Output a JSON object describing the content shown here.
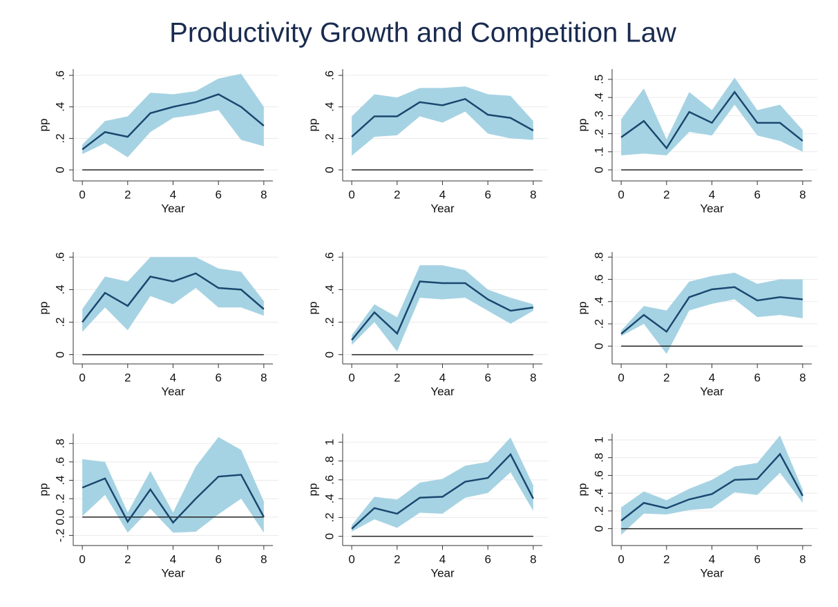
{
  "title": "Productivity Growth and Competition Law",
  "chart_data": [
    {
      "type": "line",
      "xlabel": "Year",
      "ylabel": "pp",
      "x": [
        0,
        1,
        2,
        3,
        4,
        5,
        6,
        7,
        8
      ],
      "values": [
        0.13,
        0.24,
        0.21,
        0.36,
        0.4,
        0.43,
        0.48,
        0.4,
        0.28
      ],
      "ci_low": [
        0.1,
        0.17,
        0.08,
        0.24,
        0.33,
        0.35,
        0.38,
        0.19,
        0.15
      ],
      "ci_high": [
        0.16,
        0.31,
        0.34,
        0.49,
        0.48,
        0.5,
        0.58,
        0.61,
        0.4
      ],
      "xlim": [
        -0.4,
        8.4
      ],
      "xticks": [
        0,
        2,
        4,
        6,
        8
      ],
      "ylim": [
        -0.07,
        0.64
      ],
      "yticks": [
        0,
        {
          "value": 0.2,
          "label": ".2"
        },
        {
          "value": 0.4,
          "label": ".4"
        },
        {
          "value": 0.6,
          "label": ".6"
        }
      ],
      "reference_line": 0,
      "grid": true,
      "color": "#1a476f",
      "band_color": "#a6d3e3"
    },
    {
      "type": "line",
      "xlabel": "Year",
      "ylabel": "pp",
      "x": [
        0,
        1,
        2,
        3,
        4,
        5,
        6,
        7,
        8
      ],
      "values": [
        0.21,
        0.34,
        0.34,
        0.43,
        0.41,
        0.45,
        0.35,
        0.33,
        0.25
      ],
      "ci_low": [
        0.09,
        0.21,
        0.22,
        0.34,
        0.3,
        0.37,
        0.23,
        0.2,
        0.19
      ],
      "ci_high": [
        0.34,
        0.48,
        0.46,
        0.52,
        0.52,
        0.53,
        0.48,
        0.47,
        0.31
      ],
      "xlim": [
        -0.4,
        8.4
      ],
      "xticks": [
        0,
        2,
        4,
        6,
        8
      ],
      "ylim": [
        -0.07,
        0.64
      ],
      "yticks": [
        0,
        {
          "value": 0.2,
          "label": ".2"
        },
        {
          "value": 0.4,
          "label": ".4"
        },
        {
          "value": 0.6,
          "label": ".6"
        }
      ],
      "reference_line": 0,
      "grid": true,
      "color": "#1a476f",
      "band_color": "#a6d3e3"
    },
    {
      "type": "line",
      "xlabel": "Year",
      "ylabel": "pp",
      "x": [
        0,
        1,
        2,
        3,
        4,
        5,
        6,
        7,
        8
      ],
      "values": [
        0.18,
        0.27,
        0.12,
        0.32,
        0.26,
        0.43,
        0.26,
        0.26,
        0.16
      ],
      "ci_low": [
        0.08,
        0.09,
        0.08,
        0.21,
        0.19,
        0.36,
        0.19,
        0.16,
        0.1
      ],
      "ci_high": [
        0.28,
        0.45,
        0.17,
        0.43,
        0.33,
        0.51,
        0.33,
        0.36,
        0.22
      ],
      "xlim": [
        -0.4,
        8.4
      ],
      "xticks": [
        0,
        2,
        4,
        6,
        8
      ],
      "ylim": [
        -0.061,
        0.557
      ],
      "yticks": [
        0,
        {
          "value": 0.1,
          "label": ".1"
        },
        {
          "value": 0.2,
          "label": ".2"
        },
        {
          "value": 0.3,
          "label": ".3"
        },
        {
          "value": 0.4,
          "label": ".4"
        },
        {
          "value": 0.5,
          "label": ".5"
        }
      ],
      "reference_line": 0,
      "grid": true,
      "color": "#1a476f",
      "band_color": "#a6d3e3"
    },
    {
      "type": "line",
      "xlabel": "Year",
      "ylabel": "pp",
      "x": [
        0,
        1,
        2,
        3,
        4,
        5,
        6,
        7,
        8
      ],
      "values": [
        0.2,
        0.38,
        0.3,
        0.48,
        0.45,
        0.5,
        0.41,
        0.4,
        0.28
      ],
      "ci_low": [
        0.14,
        0.29,
        0.15,
        0.36,
        0.31,
        0.41,
        0.29,
        0.29,
        0.24
      ],
      "ci_high": [
        0.28,
        0.48,
        0.45,
        0.6,
        0.6,
        0.6,
        0.53,
        0.51,
        0.33
      ],
      "xlim": [
        -0.4,
        8.4
      ],
      "xticks": [
        0,
        2,
        4,
        6,
        8
      ],
      "ylim": [
        -0.057,
        0.631
      ],
      "yticks": [
        0,
        {
          "value": 0.2,
          "label": ".2"
        },
        {
          "value": 0.4,
          "label": ".4"
        },
        {
          "value": 0.6,
          "label": ".6"
        }
      ],
      "reference_line": 0,
      "grid": true,
      "color": "#1a476f",
      "band_color": "#a6d3e3"
    },
    {
      "type": "line",
      "xlabel": "Year",
      "ylabel": "pp",
      "x": [
        0,
        1,
        2,
        3,
        4,
        5,
        6,
        7,
        8
      ],
      "values": [
        0.09,
        0.26,
        0.13,
        0.45,
        0.44,
        0.44,
        0.34,
        0.27,
        0.29
      ],
      "ci_low": [
        0.06,
        0.2,
        0.02,
        0.35,
        0.34,
        0.35,
        0.27,
        0.19,
        0.27
      ],
      "ci_high": [
        0.12,
        0.31,
        0.23,
        0.55,
        0.55,
        0.52,
        0.4,
        0.35,
        0.31
      ],
      "xlim": [
        -0.4,
        8.4
      ],
      "xticks": [
        0,
        2,
        4,
        6,
        8
      ],
      "ylim": [
        -0.057,
        0.631
      ],
      "yticks": [
        0,
        {
          "value": 0.2,
          "label": ".2"
        },
        {
          "value": 0.4,
          "label": ".4"
        },
        {
          "value": 0.6,
          "label": ".6"
        }
      ],
      "reference_line": 0,
      "grid": true,
      "color": "#1a476f",
      "band_color": "#a6d3e3"
    },
    {
      "type": "line",
      "xlabel": "Year",
      "ylabel": "pp",
      "x": [
        0,
        1,
        2,
        3,
        4,
        5,
        6,
        7,
        8
      ],
      "values": [
        0.11,
        0.28,
        0.13,
        0.44,
        0.51,
        0.53,
        0.41,
        0.44,
        0.42
      ],
      "ci_low": [
        0.09,
        0.2,
        -0.07,
        0.32,
        0.38,
        0.42,
        0.26,
        0.28,
        0.25
      ],
      "ci_high": [
        0.14,
        0.36,
        0.32,
        0.58,
        0.63,
        0.66,
        0.56,
        0.6,
        0.6
      ],
      "xlim": [
        -0.4,
        8.4
      ],
      "xticks": [
        0,
        2,
        4,
        6,
        8
      ],
      "ylim": [
        -0.16,
        0.845
      ],
      "yticks": [
        0,
        {
          "value": 0.2,
          "label": ".2"
        },
        {
          "value": 0.4,
          "label": ".4"
        },
        {
          "value": 0.6,
          "label": ".6"
        },
        {
          "value": 0.8,
          "label": ".8"
        }
      ],
      "reference_line": 0,
      "grid": true,
      "color": "#1a476f",
      "band_color": "#a6d3e3"
    },
    {
      "type": "line",
      "xlabel": "Year",
      "ylabel": "pp",
      "x": [
        0,
        1,
        2,
        3,
        4,
        5,
        6,
        7,
        8
      ],
      "values": [
        0.32,
        0.42,
        -0.05,
        0.3,
        -0.06,
        0.2,
        0.44,
        0.46,
        0.0
      ],
      "ci_low": [
        0.01,
        0.24,
        -0.17,
        0.09,
        -0.17,
        -0.16,
        0.03,
        0.2,
        -0.17
      ],
      "ci_high": [
        0.63,
        0.6,
        0.05,
        0.5,
        0.05,
        0.55,
        0.87,
        0.73,
        0.17
      ],
      "xlim": [
        -0.4,
        8.4
      ],
      "xticks": [
        0,
        2,
        4,
        6,
        8
      ],
      "ylim": [
        -0.31,
        0.907
      ],
      "yticks": [
        {
          "value": -0.2,
          "label": "-.2"
        },
        {
          "value": 0,
          "label": "0.0"
        },
        {
          "value": 0.2,
          "label": ".2"
        },
        {
          "value": 0.4,
          "label": ".4"
        },
        {
          "value": 0.6,
          "label": ".6"
        },
        {
          "value": 0.8,
          "label": ".8"
        }
      ],
      "reference_line": 0,
      "grid": true,
      "color": "#1a476f",
      "band_color": "#a6d3e3"
    },
    {
      "type": "line",
      "xlabel": "Year",
      "ylabel": "pp",
      "x": [
        0,
        1,
        2,
        3,
        4,
        5,
        6,
        7,
        8
      ],
      "values": [
        0.08,
        0.3,
        0.24,
        0.41,
        0.42,
        0.58,
        0.62,
        0.87,
        0.4
      ],
      "ci_low": [
        0.05,
        0.18,
        0.09,
        0.25,
        0.24,
        0.41,
        0.46,
        0.68,
        0.27
      ],
      "ci_high": [
        0.12,
        0.42,
        0.39,
        0.57,
        0.61,
        0.75,
        0.79,
        1.05,
        0.54
      ],
      "xlim": [
        -0.4,
        8.4
      ],
      "xticks": [
        0,
        2,
        4,
        6,
        8
      ],
      "ylim": [
        -0.098,
        1.09
      ],
      "yticks": [
        0,
        {
          "value": 0.2,
          "label": ".2"
        },
        {
          "value": 0.4,
          "label": ".4"
        },
        {
          "value": 0.6,
          "label": ".6"
        },
        {
          "value": 0.8,
          "label": ".8"
        },
        1
      ],
      "reference_line": 0,
      "grid": true,
      "color": "#1a476f",
      "band_color": "#a6d3e3"
    },
    {
      "type": "line",
      "xlabel": "Year",
      "ylabel": "pp",
      "x": [
        0,
        1,
        2,
        3,
        4,
        5,
        6,
        7,
        8
      ],
      "values": [
        0.09,
        0.29,
        0.23,
        0.33,
        0.39,
        0.55,
        0.56,
        0.84,
        0.37
      ],
      "ci_low": [
        -0.07,
        0.17,
        0.16,
        0.21,
        0.23,
        0.41,
        0.38,
        0.63,
        0.29
      ],
      "ci_high": [
        0.24,
        0.42,
        0.32,
        0.45,
        0.55,
        0.7,
        0.74,
        1.05,
        0.44
      ],
      "xlim": [
        -0.4,
        8.4
      ],
      "xticks": [
        0,
        2,
        4,
        6,
        8
      ],
      "ylim": [
        -0.19,
        1.07
      ],
      "yticks": [
        0,
        {
          "value": 0.2,
          "label": ".2"
        },
        {
          "value": 0.4,
          "label": ".4"
        },
        {
          "value": 0.6,
          "label": ".6"
        },
        {
          "value": 0.8,
          "label": ".8"
        },
        1
      ],
      "reference_line": 0,
      "grid": true,
      "color": "#1a476f",
      "band_color": "#a6d3e3"
    }
  ]
}
